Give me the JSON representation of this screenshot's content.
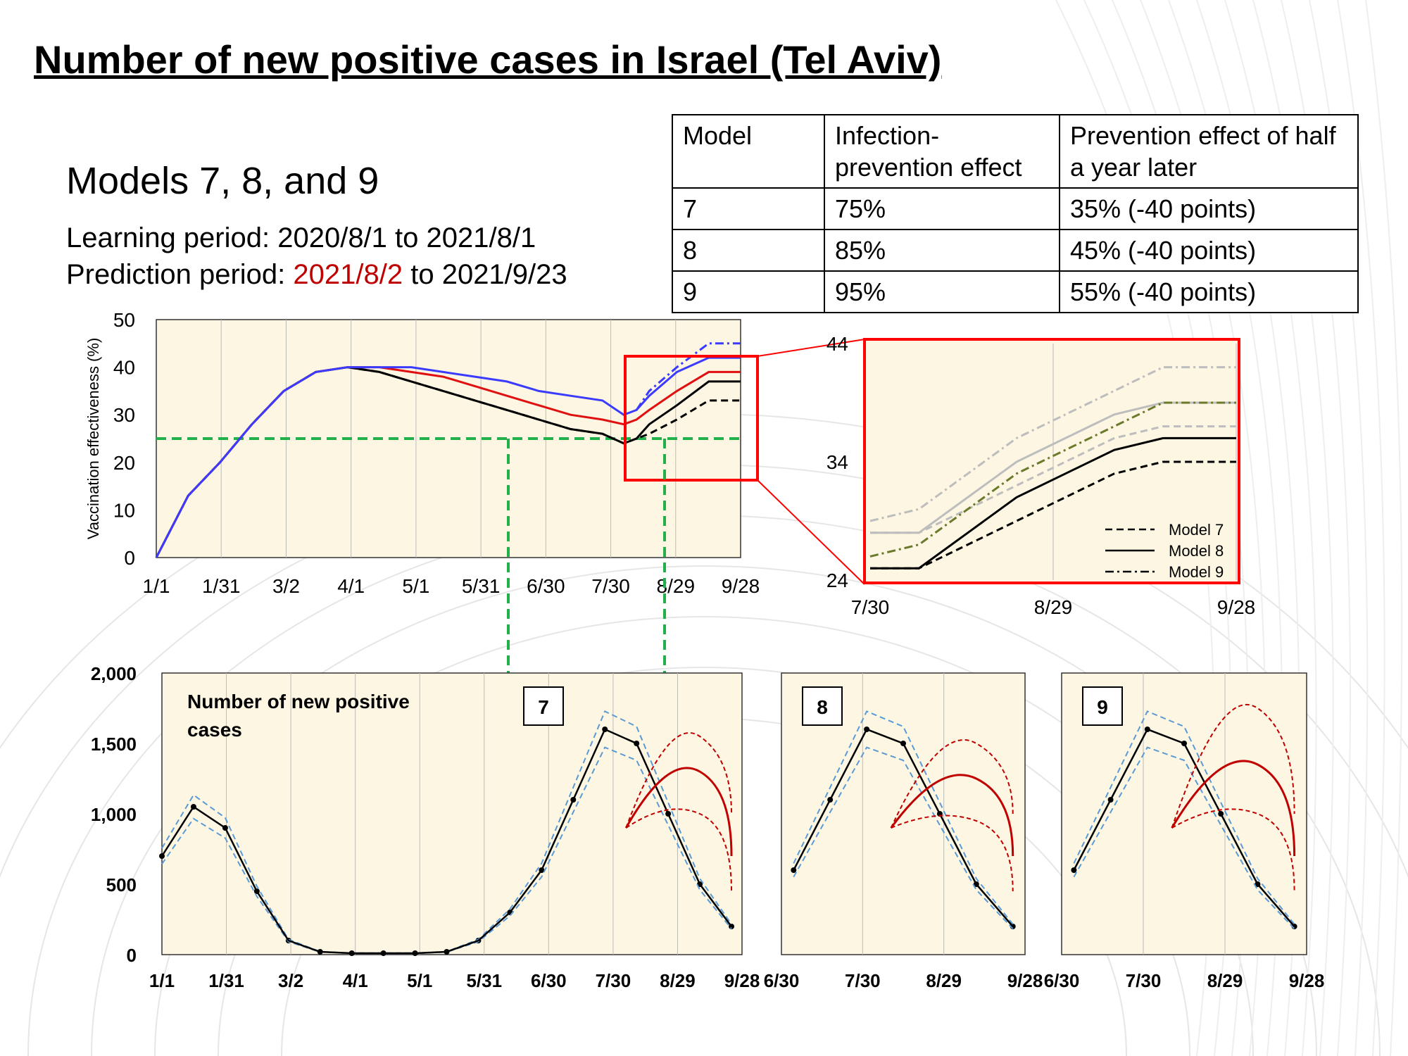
{
  "title": "Number of new positive cases in Israel (Tel Aviv)",
  "subtitle": "Models 7, 8, and 9",
  "learning_period": "Learning period: 2020/8/1 to 2021/8/1",
  "prediction_label": "Prediction period: ",
  "prediction_start": "2021/8/2",
  "prediction_end": " to 2021/9/23",
  "table": {
    "headers": [
      "Model",
      "Infection-prevention effect",
      "Prevention effect of half a year later"
    ],
    "rows": [
      [
        "7",
        "75%",
        "35% (-40 points)"
      ],
      [
        "8",
        "85%",
        "45% (-40 points)"
      ],
      [
        "9",
        "95%",
        "55% (-40 points)"
      ]
    ]
  },
  "colors": {
    "panel_bg": "#fdf6e3",
    "model7": "#000000",
    "blue": "#3b3bff",
    "red": "#e01010",
    "olive": "#6b7a2a",
    "green_dash": "#22b04a",
    "highlight": "#ff0000",
    "pred_red": "#c00000",
    "band_blue": "#5b9bd5"
  },
  "chart_data": [
    {
      "type": "line",
      "ylabel": "Vaccination effectiveness (%)",
      "ylim": [
        0,
        50
      ],
      "yticks": [
        "0",
        "10",
        "20",
        "30",
        "40",
        "50"
      ],
      "xticks": [
        "1/1",
        "1/31",
        "3/2",
        "4/1",
        "5/1",
        "5/31",
        "6/30",
        "7/30",
        "8/29",
        "9/28"
      ],
      "threshold": 25,
      "series": [
        {
          "x": [
            0,
            15,
            30,
            45,
            60,
            75,
            90,
            105,
            120,
            135,
            150,
            165,
            180,
            195,
            210,
            220,
            226,
            232,
            245,
            260,
            275
          ],
          "y": [
            0,
            13,
            20,
            28,
            35,
            39,
            40,
            39,
            37,
            35,
            33,
            31,
            29,
            27,
            26,
            24,
            25,
            28,
            32,
            37,
            37
          ]
        },
        {
          "x": [
            0,
            15,
            30,
            45,
            60,
            75,
            90,
            105,
            120,
            135,
            150,
            165,
            180,
            195,
            210,
            220,
            226,
            232,
            245,
            260,
            275
          ],
          "y": [
            0,
            13,
            20,
            28,
            35,
            39,
            40,
            39,
            37,
            35,
            33,
            31,
            29,
            27,
            26,
            24,
            25,
            26,
            29,
            33,
            33
          ]
        },
        {
          "x": [
            0,
            15,
            30,
            45,
            60,
            75,
            90,
            105,
            120,
            135,
            150,
            165,
            180,
            195,
            210,
            220,
            226,
            232,
            245,
            260,
            275
          ],
          "y": [
            0,
            13,
            20,
            28,
            35,
            39,
            40,
            40,
            39,
            38,
            36,
            34,
            32,
            30,
            29,
            28,
            29,
            31,
            35,
            39,
            39
          ]
        },
        {
          "x": [
            0,
            15,
            30,
            45,
            60,
            75,
            90,
            105,
            120,
            135,
            150,
            165,
            180,
            195,
            210,
            220,
            226,
            232,
            245,
            260,
            275
          ],
          "y": [
            0,
            13,
            20,
            28,
            35,
            39,
            40,
            40,
            40,
            39,
            38,
            37,
            35,
            34,
            33,
            30,
            31,
            34,
            39,
            42,
            42
          ]
        },
        {
          "x": [
            226,
            232,
            245,
            260,
            275
          ],
          "y": [
            31,
            35,
            40,
            45,
            45
          ]
        }
      ]
    },
    {
      "type": "line",
      "xticks": [
        "7/30",
        "8/29",
        "9/28"
      ],
      "yticks": [
        "24",
        "34",
        "44"
      ],
      "ylim": [
        24,
        44
      ],
      "legend": [
        "Model 7",
        "Model 8",
        "Model 9"
      ],
      "series": [
        {
          "x": [
            0,
            10,
            20,
            30,
            40,
            50,
            60,
            70,
            75
          ],
          "y": [
            25,
            25,
            27,
            29,
            31,
            33,
            34,
            34,
            34
          ]
        },
        {
          "x": [
            0,
            10,
            20,
            30,
            40,
            50,
            60,
            70,
            75
          ],
          "y": [
            25,
            25,
            28,
            31,
            33,
            35,
            36,
            36,
            36
          ]
        },
        {
          "x": [
            0,
            10,
            20,
            30,
            40,
            50,
            60,
            70,
            75
          ],
          "y": [
            26,
            27,
            30,
            33,
            35,
            37,
            39,
            39,
            39
          ]
        }
      ]
    },
    {
      "type": "scatter",
      "inset_label": "Number of new positive cases",
      "panel_labels": [
        "7",
        "8",
        "9"
      ],
      "ylim": [
        0,
        2000
      ],
      "yticks": [
        "0",
        "500",
        "1,000",
        "1,500",
        "2,000"
      ],
      "xticks": [
        "1/1",
        "1/31",
        "3/2",
        "4/1",
        "5/1",
        "5/31",
        "6/30",
        "7/30",
        "8/29",
        "9/28"
      ],
      "xticks_zoom": [
        "6/30",
        "7/30",
        "8/29",
        "9/28"
      ],
      "observed": {
        "x": [
          0,
          15,
          30,
          45,
          60,
          75,
          90,
          105,
          120,
          135,
          150,
          165,
          180,
          195,
          210,
          225,
          240,
          255,
          270
        ],
        "y": [
          700,
          1050,
          900,
          450,
          100,
          20,
          10,
          10,
          10,
          20,
          100,
          300,
          600,
          1100,
          1600,
          1500,
          1000,
          500,
          200
        ]
      },
      "prediction_median": [
        1300,
        1250,
        1350
      ],
      "prediction_upper": [
        1550,
        1500,
        1750
      ],
      "prediction_lower": [
        1000,
        950,
        1000
      ]
    }
  ]
}
